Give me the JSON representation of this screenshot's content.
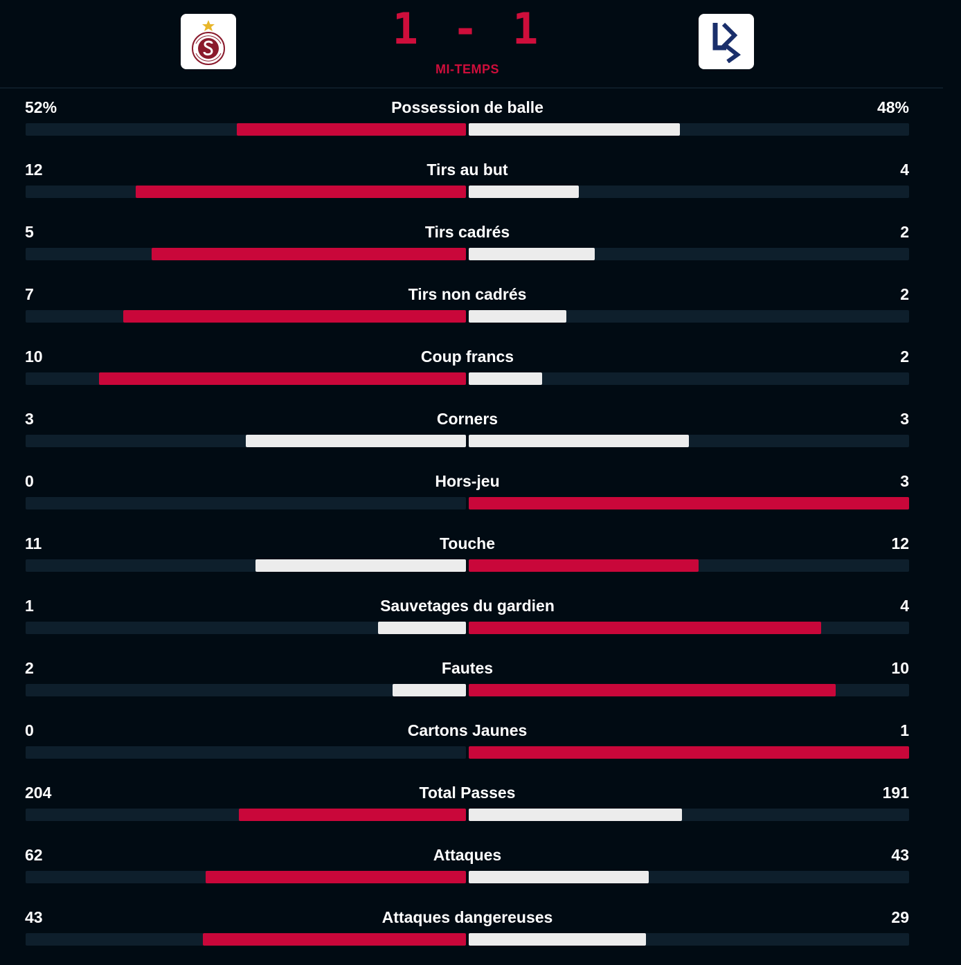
{
  "match": {
    "score": "1 - 1",
    "period": "MI-TEMPS",
    "home_team_logo": "servette-fc-logo",
    "away_team_logo": "lausanne-sport-logo"
  },
  "colors": {
    "accent": "#ce0e3b",
    "bar_leader": "#c9073a",
    "bar_other": "#ececec",
    "track": "#0e1f2c",
    "background": "#010b13"
  },
  "stats": [
    {
      "label": "Possession de balle",
      "home": "52%",
      "away": "48%",
      "home_value": 52,
      "away_value": 48
    },
    {
      "label": "Tirs au but",
      "home": "12",
      "away": "4",
      "home_value": 12,
      "away_value": 4
    },
    {
      "label": "Tirs cadrés",
      "home": "5",
      "away": "2",
      "home_value": 5,
      "away_value": 2
    },
    {
      "label": "Tirs non cadrés",
      "home": "7",
      "away": "2",
      "home_value": 7,
      "away_value": 2
    },
    {
      "label": "Coup francs",
      "home": "10",
      "away": "2",
      "home_value": 10,
      "away_value": 2
    },
    {
      "label": "Corners",
      "home": "3",
      "away": "3",
      "home_value": 3,
      "away_value": 3
    },
    {
      "label": "Hors-jeu",
      "home": "0",
      "away": "3",
      "home_value": 0,
      "away_value": 3
    },
    {
      "label": "Touche",
      "home": "11",
      "away": "12",
      "home_value": 11,
      "away_value": 12
    },
    {
      "label": "Sauvetages du gardien",
      "home": "1",
      "away": "4",
      "home_value": 1,
      "away_value": 4
    },
    {
      "label": "Fautes",
      "home": "2",
      "away": "10",
      "home_value": 2,
      "away_value": 10
    },
    {
      "label": "Cartons Jaunes",
      "home": "0",
      "away": "1",
      "home_value": 0,
      "away_value": 1
    },
    {
      "label": "Total Passes",
      "home": "204",
      "away": "191",
      "home_value": 204,
      "away_value": 191
    },
    {
      "label": "Attaques",
      "home": "62",
      "away": "43",
      "home_value": 62,
      "away_value": 43
    },
    {
      "label": "Attaques dangereuses",
      "home": "43",
      "away": "29",
      "home_value": 43,
      "away_value": 29
    }
  ]
}
